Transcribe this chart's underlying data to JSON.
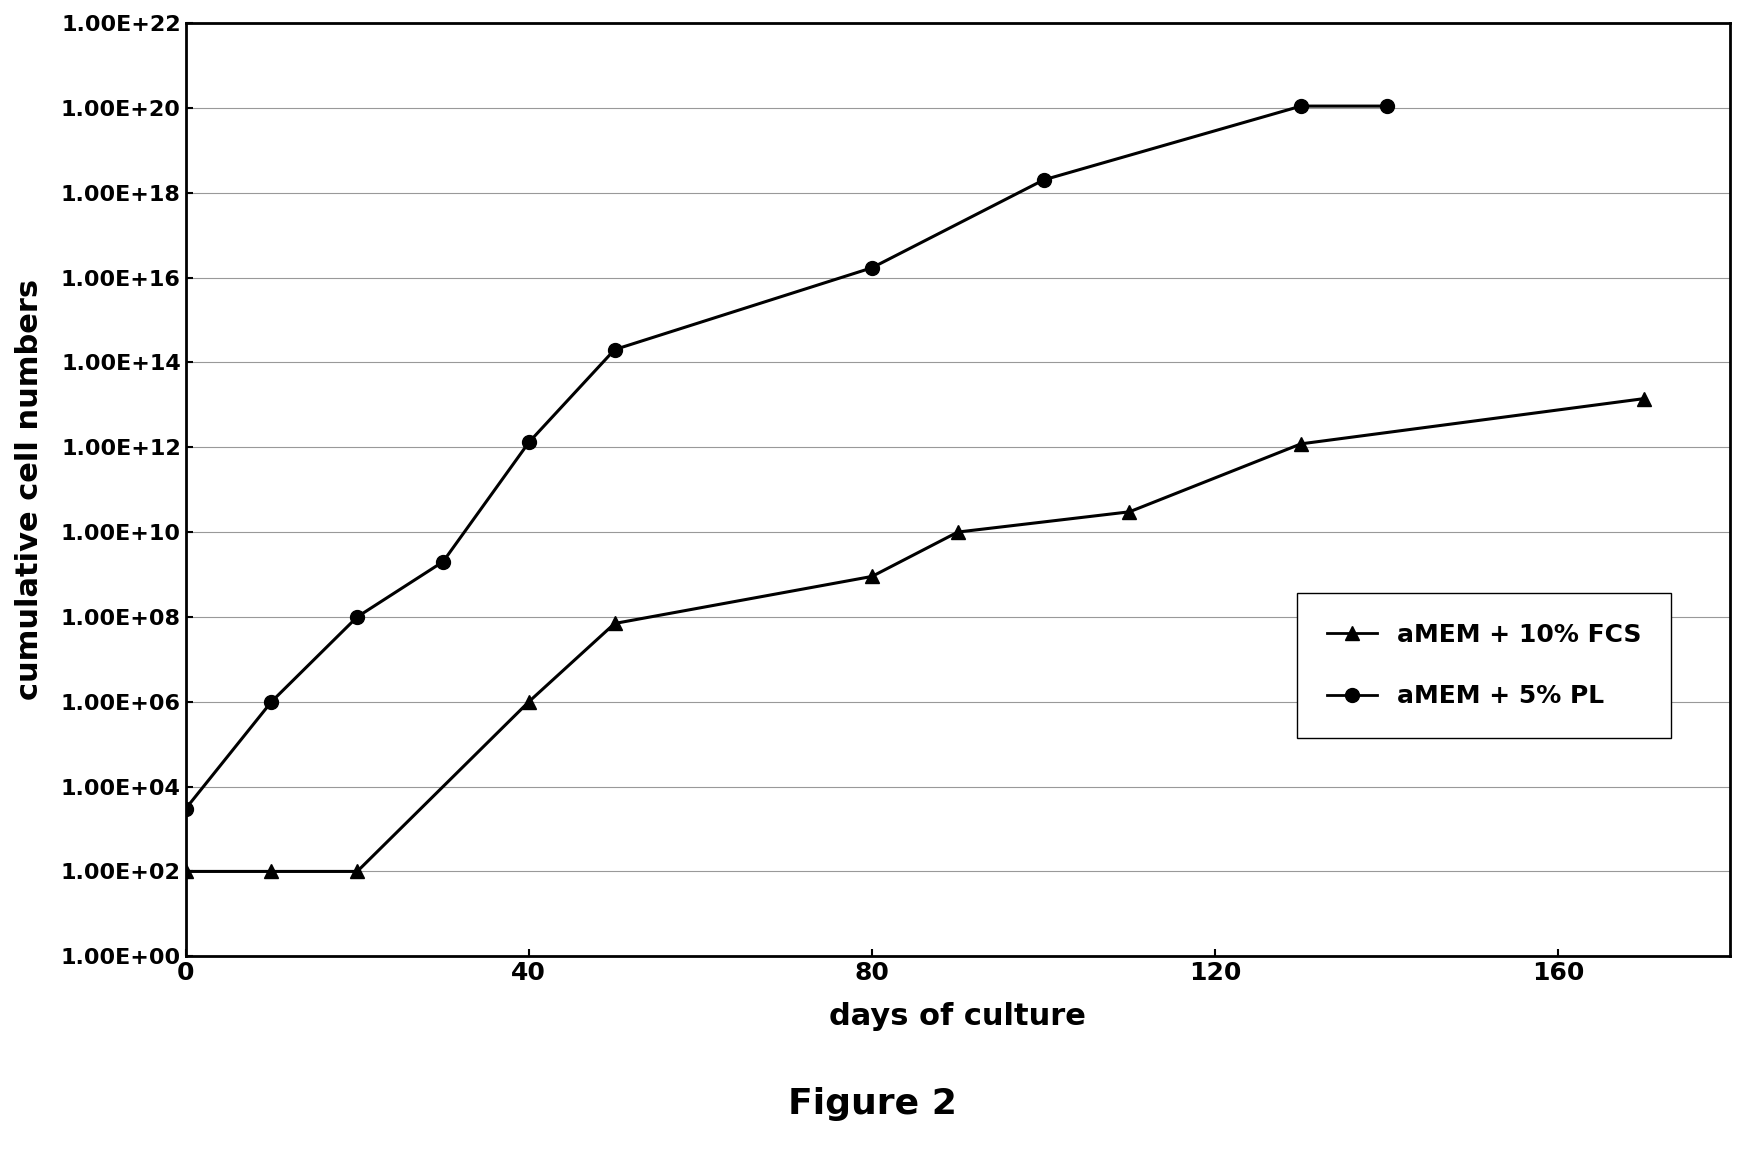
{
  "title": "Figure 2",
  "xlabel": "days of culture",
  "ylabel": "cumulative cell numbers",
  "fcs_x": [
    0,
    10,
    20,
    40,
    50,
    80,
    90,
    110,
    130,
    170
  ],
  "fcs_y": [
    100.0,
    100.0,
    100.0,
    1000000.0,
    70000000.0,
    900000000.0,
    10000000000.0,
    30000000000.0,
    1200000000000.0,
    14000000000000.0
  ],
  "pl_x": [
    0,
    10,
    20,
    30,
    40,
    50,
    80,
    100,
    130,
    140
  ],
  "pl_y": [
    3000.0,
    1000000.0,
    100000000.0,
    2000000000.0,
    1300000000000.0,
    200000000000000.0,
    1.7e+16,
    2e+18,
    1.1e+20,
    1.1e+20
  ],
  "ylim_min": 1.0,
  "ylim_max": 1e+22,
  "xlim_min": 0,
  "xlim_max": 180,
  "xticks": [
    0,
    40,
    80,
    120,
    160
  ],
  "ytick_powers": [
    0,
    2,
    4,
    6,
    8,
    10,
    12,
    14,
    16,
    18,
    20,
    22
  ],
  "color": "#000000",
  "background_color": "#ffffff",
  "figure_size": [
    17.45,
    11.62
  ],
  "dpi": 100
}
